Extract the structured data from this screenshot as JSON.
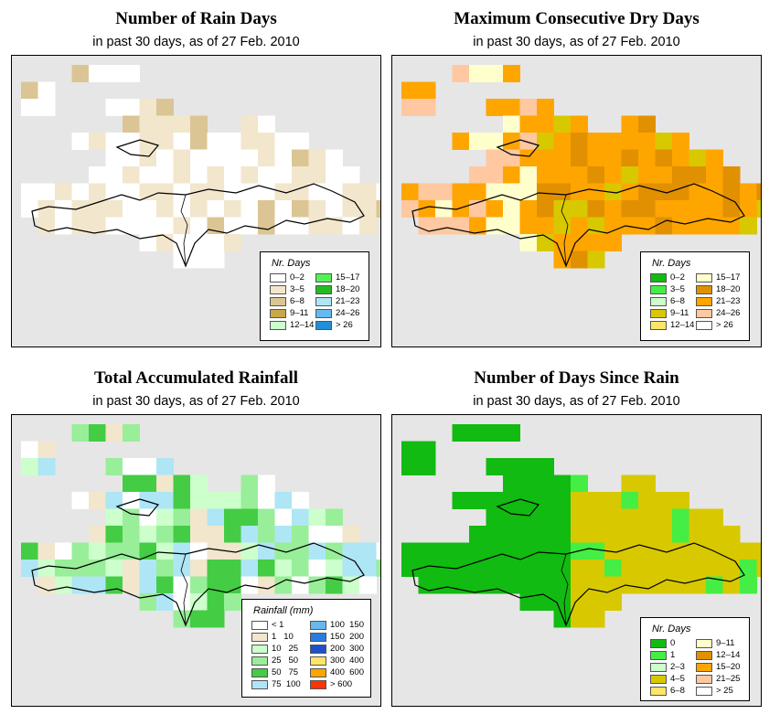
{
  "panels": [
    {
      "id": "rain-days",
      "title": "Number of Rain Days",
      "subtitle": "in past 30 days, as of  27 Feb. 2010",
      "legend": {
        "title": "Nr. Days",
        "items": [
          {
            "label": "0–2",
            "color": "#ffffff"
          },
          {
            "label": "3–5",
            "color": "#f2e6cc"
          },
          {
            "label": "6–8",
            "color": "#dcc594"
          },
          {
            "label": "9–11",
            "color": "#c8a84a"
          },
          {
            "label": "12–14",
            "color": "#ccffcc"
          },
          {
            "label": "15–17",
            "color": "#55f055"
          },
          {
            "label": "18–20",
            "color": "#22bb22"
          },
          {
            "label": "21–23",
            "color": "#aee6f5"
          },
          {
            "label": "24–26",
            "color": "#66b8ee"
          },
          {
            "label": "> 26",
            "color": "#1e90d8"
          }
        ]
      }
    },
    {
      "id": "dry-days",
      "title": "Maximum Consecutive Dry Days",
      "subtitle": "in past 30 days, as of  27 Feb. 2010",
      "legend": {
        "title": "Nr. Days",
        "items": [
          {
            "label": "0–2",
            "color": "#11bb11"
          },
          {
            "label": "3–5",
            "color": "#44ee44"
          },
          {
            "label": "6–8",
            "color": "#ccffcc"
          },
          {
            "label": "9–11",
            "color": "#d8c800"
          },
          {
            "label": "12–14",
            "color": "#ffe566"
          },
          {
            "label": "15–17",
            "color": "#ffffcc"
          },
          {
            "label": "18–20",
            "color": "#e09000"
          },
          {
            "label": "21–23",
            "color": "#ffa500"
          },
          {
            "label": "24–26",
            "color": "#ffc8a0"
          },
          {
            "label": "> 26",
            "color": "#ffffff"
          }
        ]
      }
    },
    {
      "id": "rainfall",
      "title": "Total Accumulated Rainfall",
      "subtitle": "in past 30 days, as of  27 Feb. 2010",
      "legend": {
        "title": "Rainfall (mm)",
        "items": [
          {
            "label": "< 1",
            "color": "#ffffff"
          },
          {
            "label": "1   10",
            "color": "#f2e6cc"
          },
          {
            "label": "10   25",
            "color": "#ccffcc"
          },
          {
            "label": "25   50",
            "color": "#99ee99"
          },
          {
            "label": "50   75",
            "color": "#44cc44"
          },
          {
            "label": "75  100",
            "color": "#aee6f5"
          },
          {
            "label": "100  150",
            "color": "#66b8ee"
          },
          {
            "label": "150  200",
            "color": "#2a7de0"
          },
          {
            "label": "200  300",
            "color": "#1e50c8"
          },
          {
            "label": "300  400",
            "color": "#ffe566"
          },
          {
            "label": "400  600",
            "color": "#ffa500"
          },
          {
            "label": "> 600",
            "color": "#ff3300"
          }
        ]
      }
    },
    {
      "id": "days-since-rain",
      "title": "Number of Days Since Rain",
      "subtitle": "in past 30 days, as of  27 Feb. 2010",
      "legend": {
        "title": "Nr. Days",
        "items": [
          {
            "label": "0",
            "color": "#11bb11"
          },
          {
            "label": "1",
            "color": "#44ee44"
          },
          {
            "label": "2–3",
            "color": "#ccffcc"
          },
          {
            "label": "4–5",
            "color": "#d8c800"
          },
          {
            "label": "6–8",
            "color": "#ffe566"
          },
          {
            "label": "9–11",
            "color": "#ffffcc"
          },
          {
            "label": "12–14",
            "color": "#e09000"
          },
          {
            "label": "15–20",
            "color": "#ffa500"
          },
          {
            "label": "21–25",
            "color": "#ffc8a0"
          },
          {
            "label": "> 25",
            "color": "#ffffff"
          }
        ]
      }
    }
  ],
  "chart_data": [
    {
      "type": "heatmap",
      "title": "Number of Rain Days",
      "region": "Hispaniola",
      "dominant_classes": [
        "0–2",
        "3–5",
        "6–8"
      ]
    },
    {
      "type": "heatmap",
      "title": "Maximum Consecutive Dry Days",
      "region": "Hispaniola",
      "dominant_classes": [
        "15–17",
        "18–20",
        "21–23",
        "24–26"
      ]
    },
    {
      "type": "heatmap",
      "title": "Total Accumulated Rainfall",
      "region": "Hispaniola",
      "units": "mm",
      "dominant_classes": [
        "< 1",
        "1   10",
        "10   25",
        "25   50"
      ]
    },
    {
      "type": "heatmap",
      "title": "Number of Days Since Rain",
      "region": "Hispaniola",
      "dominant_classes": [
        "0",
        "1",
        "4–5"
      ]
    }
  ]
}
